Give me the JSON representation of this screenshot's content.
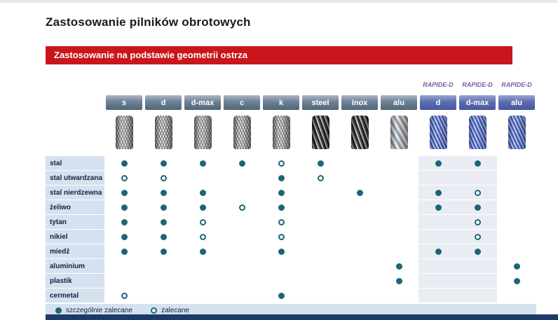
{
  "title": "Zastosowanie pilników obrotowych",
  "section_title": "Zastosowanie na podstawie geometrii ostrza",
  "rapide_label": "RAPIDE-D",
  "columns": [
    {
      "id": "s",
      "label": "s",
      "group": "standard",
      "tool": "silver"
    },
    {
      "id": "d",
      "label": "d",
      "group": "standard",
      "tool": "silver"
    },
    {
      "id": "d-max",
      "label": "d-max",
      "group": "standard",
      "tool": "silver"
    },
    {
      "id": "c",
      "label": "c",
      "group": "standard",
      "tool": "silver"
    },
    {
      "id": "k",
      "label": "k",
      "group": "standard",
      "tool": "silver"
    },
    {
      "id": "steel",
      "label": "steel",
      "group": "standard",
      "tool": "dark"
    },
    {
      "id": "inox",
      "label": "inox",
      "group": "standard",
      "tool": "dark"
    },
    {
      "id": "alu",
      "label": "alu",
      "group": "standard",
      "tool": "silver-wide"
    },
    {
      "id": "rapide-d",
      "label": "d",
      "group": "rapide",
      "tool": "blue"
    },
    {
      "id": "rapide-d-max",
      "label": "d-max",
      "group": "rapide",
      "tool": "blue"
    },
    {
      "id": "rapide-alu",
      "label": "alu",
      "group": "rapide",
      "tool": "blue"
    }
  ],
  "rows": [
    {
      "label": "stal",
      "cells": [
        "f",
        "f",
        "f",
        "f",
        "o",
        "f",
        "",
        "",
        "f",
        "f",
        ""
      ]
    },
    {
      "label": "stal utwardzana",
      "cells": [
        "o",
        "o",
        "",
        "",
        "f",
        "o",
        "",
        "",
        "",
        "",
        ""
      ]
    },
    {
      "label": "stal nierdzewna",
      "cells": [
        "f",
        "f",
        "f",
        "",
        "f",
        "",
        "f",
        "",
        "f",
        "o",
        ""
      ]
    },
    {
      "label": "żeliwo",
      "cells": [
        "f",
        "f",
        "f",
        "o",
        "f",
        "",
        "",
        "",
        "f",
        "f",
        ""
      ]
    },
    {
      "label": "tytan",
      "cells": [
        "f",
        "f",
        "o",
        "",
        "o",
        "",
        "",
        "",
        "",
        "o",
        ""
      ]
    },
    {
      "label": "nikiel",
      "cells": [
        "f",
        "f",
        "o",
        "",
        "o",
        "",
        "",
        "",
        "",
        "o",
        ""
      ]
    },
    {
      "label": "miedź",
      "cells": [
        "f",
        "f",
        "f",
        "",
        "f",
        "",
        "",
        "",
        "f",
        "f",
        ""
      ]
    },
    {
      "label": "aluminium",
      "cells": [
        "",
        "",
        "",
        "",
        "",
        "",
        "",
        "f",
        "",
        "",
        "f"
      ]
    },
    {
      "label": "plastik",
      "cells": [
        "",
        "",
        "",
        "",
        "",
        "",
        "",
        "f",
        "",
        "",
        "f"
      ]
    },
    {
      "label": "cermetal",
      "cells": [
        "o",
        "",
        "",
        "",
        "f",
        "",
        "",
        "",
        "",
        "",
        ""
      ]
    }
  ],
  "legend": [
    {
      "symbol": "filled",
      "label": "szczególnie zalecane"
    },
    {
      "symbol": "open",
      "label": "zalecane"
    }
  ],
  "colors": {
    "accent_red": "#c9161c",
    "dot_teal": "#1d6478",
    "rapide_purple": "#7d5aa6",
    "row_label_bg": "#d5e1ee",
    "rapide_column_tint": "#e9edf3",
    "footer_navy": "#1d3b66"
  }
}
